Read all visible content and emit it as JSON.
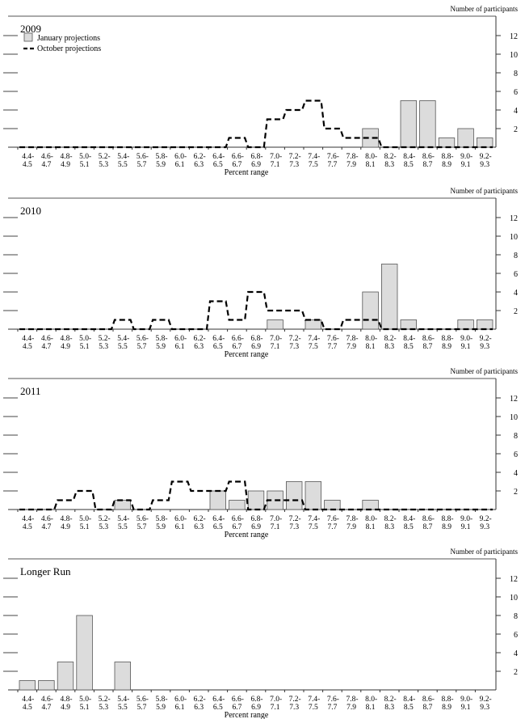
{
  "chart_data": [
    {
      "type": "bar",
      "title": "2009",
      "xlabel": "Percent range",
      "ylabel": "Number of participants",
      "ylim": [
        0,
        12
      ],
      "yticks": [
        2,
        4,
        6,
        8,
        10,
        12
      ],
      "categories": [
        "4.4-4.5",
        "4.6-4.7",
        "4.8-4.9",
        "5.0-5.1",
        "5.2-5.3",
        "5.4-5.5",
        "5.6-5.7",
        "5.8-5.9",
        "6.0-6.1",
        "6.2-6.3",
        "6.4-6.5",
        "6.6-6.7",
        "6.8-6.9",
        "7.0-7.1",
        "7.2-7.3",
        "7.4-7.5",
        "7.6-7.7",
        "7.8-7.9",
        "8.0-8.1",
        "8.2-8.3",
        "8.4-8.5",
        "8.6-8.7",
        "8.8-8.9",
        "9.0-9.1",
        "9.2-9.3"
      ],
      "legend_position": "top-left",
      "series": [
        {
          "name": "January projections",
          "style": "bar",
          "color": "#dcdcdc",
          "values": [
            0,
            0,
            0,
            0,
            0,
            0,
            0,
            0,
            0,
            0,
            0,
            0,
            0,
            0,
            0,
            0,
            0,
            0,
            2,
            0,
            5,
            5,
            1,
            2,
            1
          ]
        },
        {
          "name": "October projections",
          "style": "dashed-step",
          "color": "#000000",
          "values": [
            0,
            0,
            0,
            0,
            0,
            0,
            0,
            0,
            0,
            0,
            0,
            1,
            0,
            3,
            4,
            5,
            2,
            1,
            1,
            0,
            0,
            0,
            0,
            0,
            0
          ]
        }
      ]
    },
    {
      "type": "bar",
      "title": "2010",
      "xlabel": "Percent range",
      "ylabel": "Number of participants",
      "ylim": [
        0,
        12
      ],
      "yticks": [
        2,
        4,
        6,
        8,
        10,
        12
      ],
      "categories": [
        "4.4-4.5",
        "4.6-4.7",
        "4.8-4.9",
        "5.0-5.1",
        "5.2-5.3",
        "5.4-5.5",
        "5.6-5.7",
        "5.8-5.9",
        "6.0-6.1",
        "6.2-6.3",
        "6.4-6.5",
        "6.6-6.7",
        "6.8-6.9",
        "7.0-7.1",
        "7.2-7.3",
        "7.4-7.5",
        "7.6-7.7",
        "7.8-7.9",
        "8.0-8.1",
        "8.2-8.3",
        "8.4-8.5",
        "8.6-8.7",
        "8.8-8.9",
        "9.0-9.1",
        "9.2-9.3"
      ],
      "series": [
        {
          "name": "January projections",
          "style": "bar",
          "color": "#dcdcdc",
          "values": [
            0,
            0,
            0,
            0,
            0,
            0,
            0,
            0,
            0,
            0,
            0,
            0,
            0,
            1,
            0,
            1,
            0,
            0,
            4,
            7,
            1,
            0,
            0,
            1,
            1
          ]
        },
        {
          "name": "October projections",
          "style": "dashed-step",
          "color": "#000000",
          "values": [
            0,
            0,
            0,
            0,
            0,
            1,
            0,
            1,
            0,
            0,
            3,
            1,
            4,
            2,
            2,
            1,
            0,
            1,
            1,
            0,
            0,
            0,
            0,
            0,
            0
          ]
        }
      ]
    },
    {
      "type": "bar",
      "title": "2011",
      "xlabel": "Percent range",
      "ylabel": "Number of participants",
      "ylim": [
        0,
        12
      ],
      "yticks": [
        2,
        4,
        6,
        8,
        10,
        12
      ],
      "categories": [
        "4.4-4.5",
        "4.6-4.7",
        "4.8-4.9",
        "5.0-5.1",
        "5.2-5.3",
        "5.4-5.5",
        "5.6-5.7",
        "5.8-5.9",
        "6.0-6.1",
        "6.2-6.3",
        "6.4-6.5",
        "6.6-6.7",
        "6.8-6.9",
        "7.0-7.1",
        "7.2-7.3",
        "7.4-7.5",
        "7.6-7.7",
        "7.8-7.9",
        "8.0-8.1",
        "8.2-8.3",
        "8.4-8.5",
        "8.6-8.7",
        "8.8-8.9",
        "9.0-9.1",
        "9.2-9.3"
      ],
      "series": [
        {
          "name": "January projections",
          "style": "bar",
          "color": "#dcdcdc",
          "values": [
            0,
            0,
            0,
            0,
            0,
            1,
            0,
            0,
            0,
            0,
            2,
            1,
            2,
            2,
            3,
            3,
            1,
            0,
            1,
            0,
            0,
            0,
            0,
            0,
            0
          ]
        },
        {
          "name": "October projections",
          "style": "dashed-step",
          "color": "#000000",
          "values": [
            0,
            0,
            1,
            2,
            0,
            1,
            0,
            1,
            3,
            2,
            2,
            3,
            0,
            1,
            1,
            0,
            0,
            0,
            0,
            0,
            0,
            0,
            0,
            0,
            0
          ]
        }
      ]
    },
    {
      "type": "bar",
      "title": "Longer Run",
      "xlabel": "Percent range",
      "ylabel": "Number of participants",
      "ylim": [
        0,
        12
      ],
      "yticks": [
        2,
        4,
        6,
        8,
        10,
        12
      ],
      "categories": [
        "4.4-4.5",
        "4.6-4.7",
        "4.8-4.9",
        "5.0-5.1",
        "5.2-5.3",
        "5.4-5.5",
        "5.6-5.7",
        "5.8-5.9",
        "6.0-6.1",
        "6.2-6.3",
        "6.4-6.5",
        "6.6-6.7",
        "6.8-6.9",
        "7.0-7.1",
        "7.2-7.3",
        "7.4-7.5",
        "7.6-7.7",
        "7.8-7.9",
        "8.0-8.1",
        "8.2-8.3",
        "8.4-8.5",
        "8.6-8.7",
        "8.8-8.9",
        "9.0-9.1",
        "9.2-9.3"
      ],
      "series": [
        {
          "name": "January projections",
          "style": "bar",
          "color": "#dcdcdc",
          "values": [
            1,
            1,
            3,
            8,
            0,
            3,
            0,
            0,
            0,
            0,
            0,
            0,
            0,
            0,
            0,
            0,
            0,
            0,
            0,
            0,
            0,
            0,
            0,
            0,
            0
          ]
        }
      ]
    }
  ]
}
